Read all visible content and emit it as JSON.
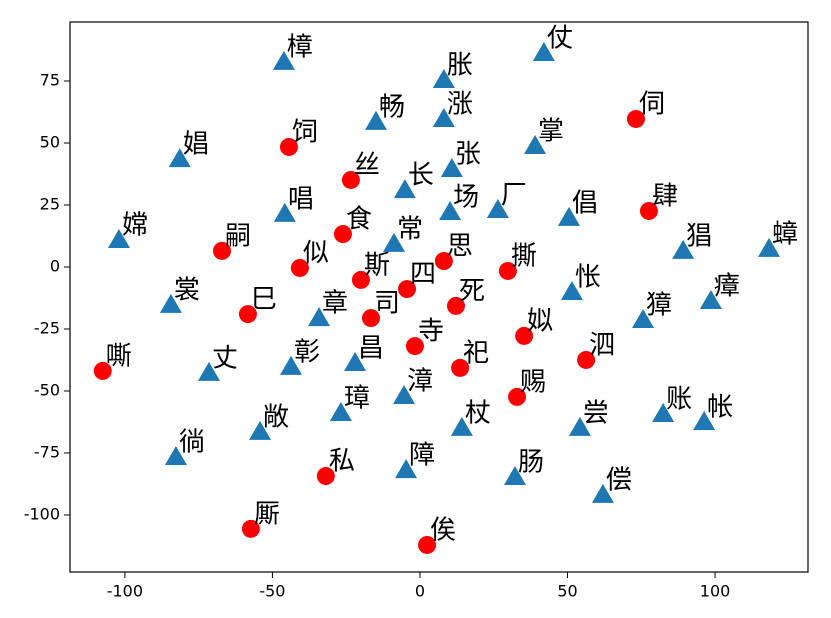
{
  "chart_data": {
    "type": "scatter",
    "xlim": [
      -118.6,
      131.5
    ],
    "ylim": [
      -123,
      98.8
    ],
    "xticks": [
      -100,
      -50,
      0,
      50,
      100
    ],
    "yticks": [
      -100,
      -75,
      -50,
      -25,
      0,
      25,
      50,
      75
    ],
    "series": [
      {
        "marker": "circle",
        "color": "#ff0000",
        "labels": [
          "饲",
          "丝",
          "食",
          "嗣",
          "似",
          "斯",
          "四",
          "思",
          "撕",
          "死",
          "巳",
          "司",
          "寺",
          "姒",
          "泗",
          "祀",
          "嘶",
          "赐",
          "私",
          "厮",
          "俟",
          "伺",
          "肆"
        ],
        "x": [
          -44.4,
          -23.4,
          -26.1,
          -67.1,
          -40.7,
          -20,
          -4.4,
          8.1,
          29.8,
          12.2,
          -58.3,
          -16.6,
          -1.7,
          35.3,
          56.3,
          13.6,
          -107.5,
          32.9,
          -31.9,
          -57.3,
          2.4,
          73.2,
          77.6
        ],
        "y": [
          48.4,
          35.1,
          13.3,
          6.5,
          -0.4,
          -5.2,
          -8.9,
          2.4,
          -1.6,
          -15.7,
          -19,
          -20.6,
          -31.9,
          -27.8,
          -37.5,
          -40.7,
          -41.9,
          -52.4,
          -84.3,
          -105.6,
          -112.1,
          59.7,
          22.6
        ]
      },
      {
        "marker": "triangle",
        "color": "#1f77b4",
        "labels": [
          "樟",
          "胀",
          "仗",
          "畅",
          "涨",
          "掌",
          "娼",
          "张",
          "长",
          "唱",
          "场",
          "厂",
          "倡",
          "嫦",
          "常",
          "猖",
          "蟑",
          "裳",
          "怅",
          "獐",
          "瘴",
          "章",
          "彰",
          "丈",
          "昌",
          "漳",
          "璋",
          "敞",
          "杖",
          "尝",
          "账",
          "帐",
          "徜",
          "障",
          "肠",
          "偿"
        ],
        "x": [
          -46.1,
          8.1,
          42,
          -14.9,
          8.1,
          39,
          -81.4,
          10.8,
          -5.1,
          -45.8,
          10.2,
          26.4,
          50.5,
          -102,
          -8.8,
          89.2,
          118.3,
          -84.4,
          51.5,
          75.6,
          98.6,
          -34.2,
          -43.7,
          -71.5,
          -22,
          -5.4,
          -26.8,
          -54.2,
          14.2,
          54.2,
          82.4,
          96.3,
          -82.7,
          -4.7,
          32.2,
          62
        ],
        "y": [
          82.7,
          75.4,
          86.3,
          58.5,
          59.7,
          48.8,
          43.5,
          39.5,
          31,
          21.4,
          22.2,
          23,
          19.8,
          10.9,
          9.3,
          6.5,
          7.3,
          -15.3,
          -10.1,
          -21.4,
          -13.7,
          -20.6,
          -40.3,
          -42.7,
          -38.7,
          -52,
          -58.9,
          -66.5,
          -64.9,
          -64.9,
          -59.3,
          -62.5,
          -76.6,
          -81.9,
          -84.7,
          -91.9
        ]
      }
    ]
  }
}
